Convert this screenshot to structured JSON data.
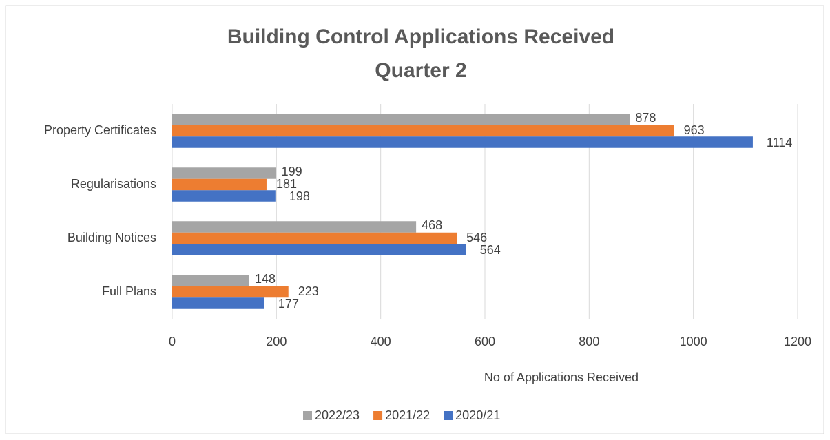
{
  "chart_data": {
    "type": "bar",
    "orientation": "horizontal",
    "title": [
      "Building Control Applications Received",
      "Quarter 2"
    ],
    "xlabel": "No of Applications Received",
    "categories": [
      "Full Plans",
      "Building Notices",
      "Regularisations",
      "Property Certificates"
    ],
    "series": [
      {
        "name": "2022/23",
        "color": "#a5a5a5",
        "values": [
          148,
          468,
          199,
          878
        ]
      },
      {
        "name": "2021/22",
        "color": "#ed7d31",
        "values": [
          223,
          546,
          181,
          963
        ]
      },
      {
        "name": "2020/21",
        "color": "#4472c4",
        "values": [
          177,
          564,
          198,
          1114
        ]
      }
    ],
    "xlim": [
      0,
      1200
    ],
    "xticks": [
      0,
      200,
      400,
      600,
      800,
      1000,
      1200
    ],
    "grid": true,
    "legend": "bottom"
  }
}
